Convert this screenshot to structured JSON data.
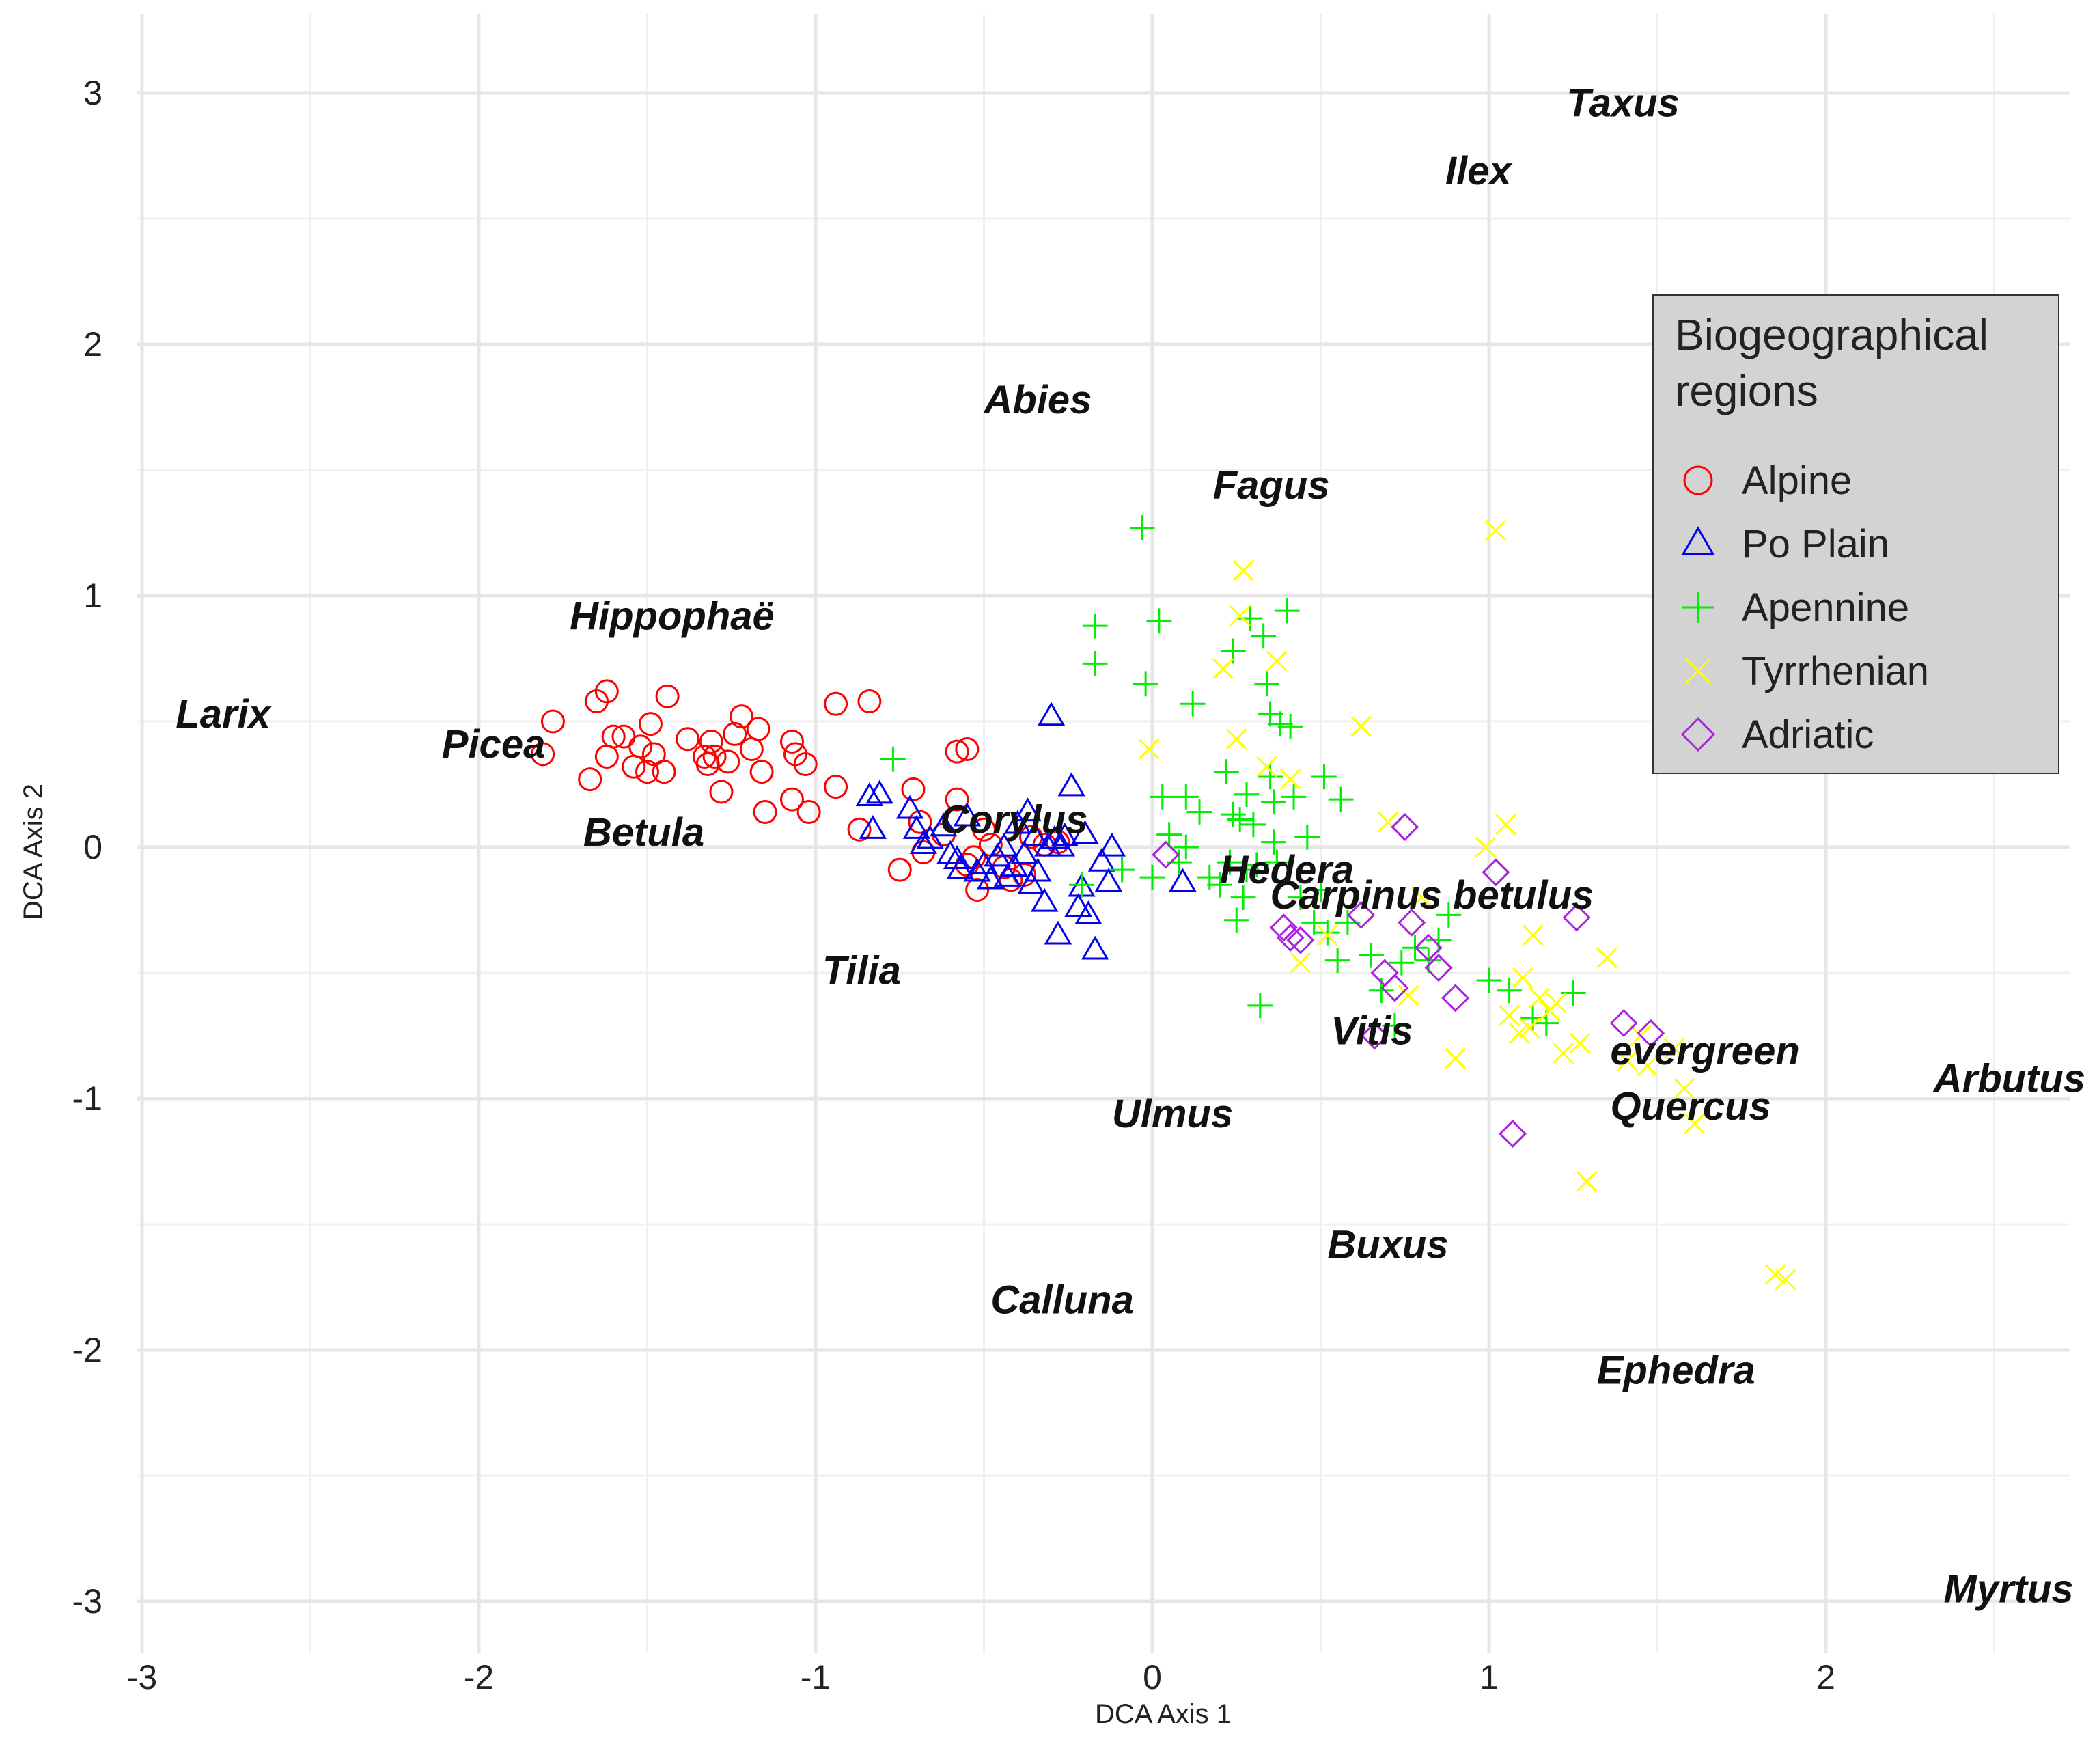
{
  "chart_data": {
    "type": "scatter",
    "title": "",
    "xlabel": "DCA Axis 1",
    "ylabel": "DCA Axis 2",
    "xlim": [
      -3.0,
      2.7
    ],
    "ylim": [
      -3.15,
      3.15
    ],
    "x_ticks": [
      -3,
      -2,
      -1,
      0,
      1,
      2
    ],
    "y_ticks": [
      3,
      2,
      1,
      0,
      -1,
      -2,
      -3
    ],
    "x_tick_labels": [
      "-3",
      "-2",
      "-1",
      "0",
      "1",
      "2"
    ],
    "y_tick_labels": [
      "3",
      "2",
      "1",
      "0",
      "-1",
      "-2",
      "-3"
    ],
    "grid": true,
    "legend": {
      "title": "Biogeographical regions",
      "title_lines": [
        "Biogeographical",
        "regions"
      ],
      "position": "right"
    },
    "series": [
      {
        "name": "Alpine",
        "marker": "circle",
        "color": "#ff0000",
        "points": [
          [
            -1.81,
            0.37
          ],
          [
            -1.78,
            0.5
          ],
          [
            -1.67,
            0.27
          ],
          [
            -1.65,
            0.58
          ],
          [
            -1.62,
            0.36
          ],
          [
            -1.62,
            0.62
          ],
          [
            -1.6,
            0.44
          ],
          [
            -1.57,
            0.44
          ],
          [
            -1.54,
            0.32
          ],
          [
            -1.52,
            0.4
          ],
          [
            -1.5,
            0.3
          ],
          [
            -1.49,
            0.49
          ],
          [
            -1.48,
            0.37
          ],
          [
            -1.45,
            0.3
          ],
          [
            -1.44,
            0.6
          ],
          [
            -1.38,
            0.43
          ],
          [
            -1.33,
            0.36
          ],
          [
            -1.32,
            0.33
          ],
          [
            -1.31,
            0.42
          ],
          [
            -1.3,
            0.36
          ],
          [
            -1.28,
            0.22
          ],
          [
            -1.26,
            0.34
          ],
          [
            -1.24,
            0.45
          ],
          [
            -1.22,
            0.52
          ],
          [
            -1.19,
            0.39
          ],
          [
            -1.17,
            0.47
          ],
          [
            -1.16,
            0.3
          ],
          [
            -1.15,
            0.14
          ],
          [
            -1.07,
            0.42
          ],
          [
            -1.07,
            0.19
          ],
          [
            -1.06,
            0.37
          ],
          [
            -1.03,
            0.33
          ],
          [
            -1.02,
            0.14
          ],
          [
            -0.94,
            0.24
          ],
          [
            -0.94,
            0.57
          ],
          [
            -0.87,
            0.07
          ],
          [
            -0.84,
            0.58
          ],
          [
            -0.75,
            -0.09
          ],
          [
            -0.71,
            0.23
          ],
          [
            -0.69,
            0.1
          ],
          [
            -0.68,
            -0.02
          ],
          [
            -0.62,
            0.05
          ],
          [
            -0.58,
            0.19
          ],
          [
            -0.58,
            0.38
          ],
          [
            -0.55,
            0.39
          ],
          [
            -0.55,
            -0.07
          ],
          [
            -0.53,
            -0.04
          ],
          [
            -0.52,
            -0.17
          ],
          [
            -0.5,
            0.07
          ],
          [
            -0.48,
            0.01
          ],
          [
            -0.44,
            -0.08
          ],
          [
            -0.42,
            -0.13
          ],
          [
            -0.38,
            -0.11
          ],
          [
            -0.36,
            0.04
          ],
          [
            -0.32,
            0.01
          ],
          [
            -0.28,
            0.02
          ]
        ]
      },
      {
        "name": "Po Plain",
        "marker": "triangle",
        "color": "#0000ee",
        "points": [
          [
            -0.84,
            0.2
          ],
          [
            -0.81,
            0.21
          ],
          [
            -0.83,
            0.07
          ],
          [
            -0.72,
            0.15
          ],
          [
            -0.7,
            0.07
          ],
          [
            -0.68,
            0.01
          ],
          [
            -0.66,
            0.03
          ],
          [
            -0.62,
            0.08
          ],
          [
            -0.6,
            -0.03
          ],
          [
            -0.58,
            -0.05
          ],
          [
            -0.57,
            -0.09
          ],
          [
            -0.55,
            0.12
          ],
          [
            -0.52,
            -0.1
          ],
          [
            -0.5,
            -0.07
          ],
          [
            -0.48,
            -0.13
          ],
          [
            -0.46,
            -0.04
          ],
          [
            -0.44,
            0.0
          ],
          [
            -0.43,
            -0.12
          ],
          [
            -0.41,
            -0.08
          ],
          [
            -0.4,
            0.09
          ],
          [
            -0.38,
            -0.03
          ],
          [
            -0.37,
            0.14
          ],
          [
            -0.36,
            -0.15
          ],
          [
            -0.35,
            0.04
          ],
          [
            -0.34,
            -0.1
          ],
          [
            -0.32,
            -0.22
          ],
          [
            -0.31,
            0.0
          ],
          [
            -0.3,
            0.52
          ],
          [
            -0.29,
            0.03
          ],
          [
            -0.28,
            -0.35
          ],
          [
            -0.27,
            0.0
          ],
          [
            -0.26,
            0.04
          ],
          [
            -0.24,
            0.24
          ],
          [
            -0.22,
            -0.24
          ],
          [
            -0.21,
            -0.16
          ],
          [
            -0.2,
            0.05
          ],
          [
            -0.19,
            -0.27
          ],
          [
            -0.17,
            -0.41
          ],
          [
            -0.15,
            -0.06
          ],
          [
            -0.13,
            -0.14
          ],
          [
            -0.12,
            0.0
          ],
          [
            0.09,
            -0.14
          ]
        ]
      },
      {
        "name": "Apennine",
        "marker": "plus",
        "color": "#00ee00",
        "points": [
          [
            -0.77,
            0.35
          ],
          [
            -0.21,
            -0.15
          ],
          [
            -0.17,
            0.88
          ],
          [
            -0.17,
            0.73
          ],
          [
            -0.09,
            -0.09
          ],
          [
            -0.02,
            0.65
          ],
          [
            -0.03,
            1.27
          ],
          [
            0.02,
            0.9
          ],
          [
            0.0,
            -0.12
          ],
          [
            0.03,
            0.2
          ],
          [
            0.05,
            0.05
          ],
          [
            0.08,
            -0.06
          ],
          [
            0.1,
            0.2
          ],
          [
            0.1,
            0.0
          ],
          [
            0.12,
            0.57
          ],
          [
            0.14,
            0.14
          ],
          [
            0.17,
            -0.12
          ],
          [
            0.2,
            -0.15
          ],
          [
            0.22,
            0.3
          ],
          [
            0.23,
            -0.06
          ],
          [
            0.24,
            0.78
          ],
          [
            0.24,
            0.13
          ],
          [
            0.25,
            -0.29
          ],
          [
            0.26,
            0.11
          ],
          [
            0.27,
            -0.2
          ],
          [
            0.28,
            0.21
          ],
          [
            0.28,
            -0.09
          ],
          [
            0.29,
            0.91
          ],
          [
            0.3,
            0.09
          ],
          [
            0.31,
            -0.07
          ],
          [
            0.32,
            -0.63
          ],
          [
            0.33,
            0.84
          ],
          [
            0.34,
            0.65
          ],
          [
            0.35,
            0.53
          ],
          [
            0.35,
            0.28
          ],
          [
            0.36,
            0.02
          ],
          [
            0.36,
            0.18
          ],
          [
            0.37,
            -0.06
          ],
          [
            0.38,
            0.49
          ],
          [
            0.4,
            0.94
          ],
          [
            0.41,
            0.48
          ],
          [
            0.42,
            0.2
          ],
          [
            0.44,
            -0.2
          ],
          [
            0.46,
            0.04
          ],
          [
            0.48,
            -0.3
          ],
          [
            0.5,
            -0.17
          ],
          [
            0.51,
            0.28
          ],
          [
            0.52,
            -0.34
          ],
          [
            0.55,
            -0.45
          ],
          [
            0.56,
            0.19
          ],
          [
            0.58,
            -0.3
          ],
          [
            0.65,
            -0.43
          ],
          [
            0.68,
            -0.57
          ],
          [
            0.72,
            -0.71
          ],
          [
            0.74,
            -0.46
          ],
          [
            0.78,
            -0.4
          ],
          [
            0.82,
            -0.45
          ],
          [
            0.85,
            -0.37
          ],
          [
            0.88,
            -0.27
          ],
          [
            1.0,
            -0.53
          ],
          [
            1.06,
            -0.57
          ],
          [
            1.13,
            -0.68
          ],
          [
            1.17,
            -0.7
          ],
          [
            1.25,
            -0.58
          ]
        ]
      },
      {
        "name": "Tyrrhenian",
        "marker": "cross",
        "color": "#ffff00",
        "points": [
          [
            -0.01,
            0.39
          ],
          [
            0.21,
            0.71
          ],
          [
            0.25,
            0.43
          ],
          [
            0.26,
            0.92
          ],
          [
            0.27,
            1.1
          ],
          [
            0.34,
            0.32
          ],
          [
            0.37,
            0.74
          ],
          [
            0.41,
            0.27
          ],
          [
            0.44,
            -0.46
          ],
          [
            0.52,
            -0.35
          ],
          [
            0.62,
            0.48
          ],
          [
            0.7,
            0.1
          ],
          [
            0.76,
            -0.59
          ],
          [
            0.8,
            -0.2
          ],
          [
            0.9,
            -0.84
          ],
          [
            0.99,
            0.0
          ],
          [
            1.02,
            1.26
          ],
          [
            1.05,
            0.09
          ],
          [
            1.06,
            -0.67
          ],
          [
            1.09,
            -0.74
          ],
          [
            1.1,
            -0.52
          ],
          [
            1.12,
            -0.72
          ],
          [
            1.13,
            -0.35
          ],
          [
            1.15,
            -0.6
          ],
          [
            1.18,
            -0.65
          ],
          [
            1.2,
            -0.62
          ],
          [
            1.22,
            -0.82
          ],
          [
            1.27,
            -0.78
          ],
          [
            1.29,
            -1.33
          ],
          [
            1.35,
            -0.44
          ],
          [
            1.41,
            -0.85
          ],
          [
            1.45,
            -0.75
          ],
          [
            1.47,
            -0.87
          ],
          [
            1.55,
            -0.8
          ],
          [
            1.58,
            -0.96
          ],
          [
            1.61,
            -1.1
          ],
          [
            1.85,
            -1.7
          ],
          [
            1.88,
            -1.72
          ]
        ]
      },
      {
        "name": "Adriatic",
        "marker": "diamond",
        "color": "#aa22dd",
        "points": [
          [
            0.04,
            -0.03
          ],
          [
            0.39,
            -0.32
          ],
          [
            0.41,
            -0.36
          ],
          [
            0.44,
            -0.37
          ],
          [
            0.62,
            -0.27
          ],
          [
            0.66,
            -0.75
          ],
          [
            0.69,
            -0.5
          ],
          [
            0.72,
            -0.56
          ],
          [
            0.75,
            0.08
          ],
          [
            0.77,
            -0.3
          ],
          [
            0.82,
            -0.4
          ],
          [
            0.85,
            -0.48
          ],
          [
            0.9,
            -0.6
          ],
          [
            1.02,
            -0.1
          ],
          [
            1.07,
            -1.14
          ],
          [
            1.26,
            -0.28
          ],
          [
            1.4,
            -0.7
          ],
          [
            1.48,
            -0.74
          ]
        ]
      }
    ],
    "annotations": [
      {
        "text": "Taxus",
        "x": 1.23,
        "y": 2.96
      },
      {
        "text": "Ilex",
        "x": 0.87,
        "y": 2.69
      },
      {
        "text": "Abies",
        "x": -0.5,
        "y": 1.78
      },
      {
        "text": "Fagus",
        "x": 0.18,
        "y": 1.44
      },
      {
        "text": "Hippophaë",
        "x": -1.73,
        "y": 0.92
      },
      {
        "text": "Larix",
        "x": -2.9,
        "y": 0.53
      },
      {
        "text": "Picea",
        "x": -2.11,
        "y": 0.41
      },
      {
        "text": "Betula",
        "x": -1.69,
        "y": 0.06
      },
      {
        "text": "Corylus",
        "x": -0.63,
        "y": 0.11
      },
      {
        "text": "Hedera",
        "x": 0.2,
        "y": -0.09
      },
      {
        "text": "Carpinus betulus",
        "x": 0.35,
        "y": -0.19
      },
      {
        "text": "Tilia",
        "x": -0.98,
        "y": -0.49
      },
      {
        "text": "Vitis",
        "x": 0.53,
        "y": -0.73
      },
      {
        "text": "evergreen",
        "x": 1.36,
        "y": -0.81
      },
      {
        "text": "Quercus",
        "x": 1.36,
        "y": -1.03
      },
      {
        "text": "Arbutus",
        "x": 2.32,
        "y": -0.92
      },
      {
        "text": "Ulmus",
        "x": -0.12,
        "y": -1.06
      },
      {
        "text": "Buxus",
        "x": 0.52,
        "y": -1.58
      },
      {
        "text": "Calluna",
        "x": -0.48,
        "y": -1.8
      },
      {
        "text": "Ephedra",
        "x": 1.32,
        "y": -2.08
      },
      {
        "text": "Myrtus",
        "x": 2.35,
        "y": -2.95
      }
    ]
  }
}
